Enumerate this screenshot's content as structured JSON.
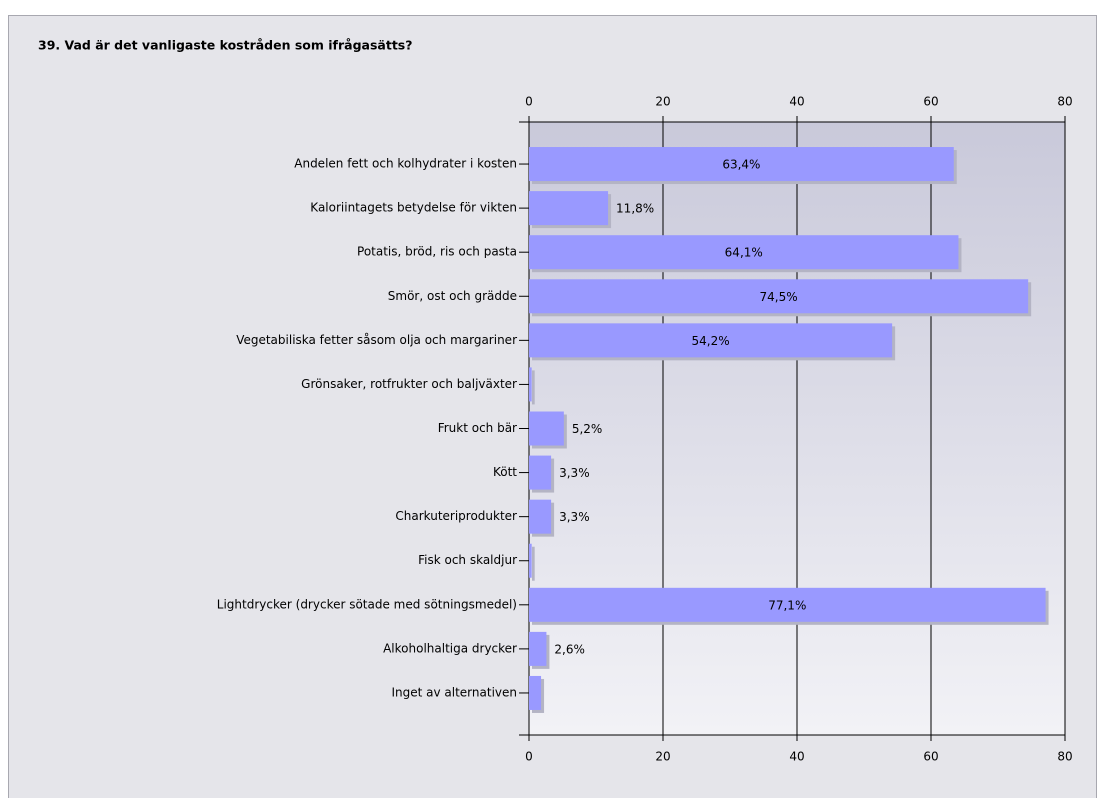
{
  "chart_data": {
    "type": "bar",
    "orientation": "horizontal",
    "title": "39. Vad är det vanligaste kostråden som ifrågasätts?",
    "categories": [
      "Andelen fett och kolhydrater i kosten",
      "Kaloriintagets betydelse för vikten",
      "Potatis, bröd, ris och pasta",
      "Smör, ost och grädde",
      "Vegetabiliska fetter såsom olja och margariner",
      "Grönsaker, rotfrukter och baljväxter",
      "Frukt och bär",
      "Kött",
      "Charkuteriprodukter",
      "Fisk och skaldjur",
      "Lightdrycker (drycker sötade med sötningsmedel)",
      "Alkoholhaltiga drycker",
      "Inget av alternativen"
    ],
    "values": [
      63.4,
      11.8,
      64.1,
      74.5,
      54.2,
      0.4,
      5.2,
      3.3,
      3.3,
      0.4,
      77.1,
      2.6,
      1.8
    ],
    "value_labels": [
      "63,4%",
      "11,8%",
      "64,1%",
      "74,5%",
      "54,2%",
      null,
      "5,2%",
      "3,3%",
      "3,3%",
      null,
      "77,1%",
      "2,6%",
      null
    ],
    "color": "#9999ff",
    "xlim": [
      0,
      80
    ],
    "xticks": [
      0,
      20,
      40,
      60,
      80
    ],
    "grid": true
  }
}
